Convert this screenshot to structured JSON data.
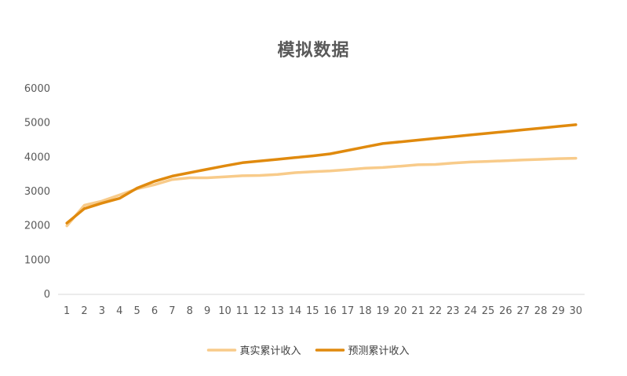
{
  "chart_data": {
    "type": "line",
    "title": "模拟数据",
    "xlabel": "",
    "ylabel": "",
    "x": [
      1,
      2,
      3,
      4,
      5,
      6,
      7,
      8,
      9,
      10,
      11,
      12,
      13,
      14,
      15,
      16,
      17,
      18,
      19,
      20,
      21,
      22,
      23,
      24,
      25,
      26,
      27,
      28,
      29,
      30
    ],
    "ylim": [
      0,
      6000
    ],
    "yticks": [
      0,
      1000,
      2000,
      3000,
      4000,
      5000,
      6000
    ],
    "grid": false,
    "legend_position": "bottom",
    "series": [
      {
        "name": "真实累计收入",
        "color": "#F8CB8A",
        "values": [
          2000,
          2600,
          2720,
          2900,
          3080,
          3200,
          3350,
          3400,
          3400,
          3430,
          3460,
          3470,
          3500,
          3550,
          3580,
          3600,
          3640,
          3680,
          3700,
          3740,
          3780,
          3790,
          3830,
          3860,
          3880,
          3900,
          3920,
          3940,
          3960,
          3970
        ]
      },
      {
        "name": "预测累计收入",
        "color": "#E08A0E",
        "values": [
          2080,
          2500,
          2660,
          2800,
          3100,
          3300,
          3450,
          3550,
          3650,
          3750,
          3840,
          3890,
          3940,
          3990,
          4040,
          4100,
          4200,
          4300,
          4400,
          4450,
          4500,
          4550,
          4600,
          4650,
          4700,
          4750,
          4800,
          4850,
          4900,
          4950
        ]
      }
    ]
  }
}
